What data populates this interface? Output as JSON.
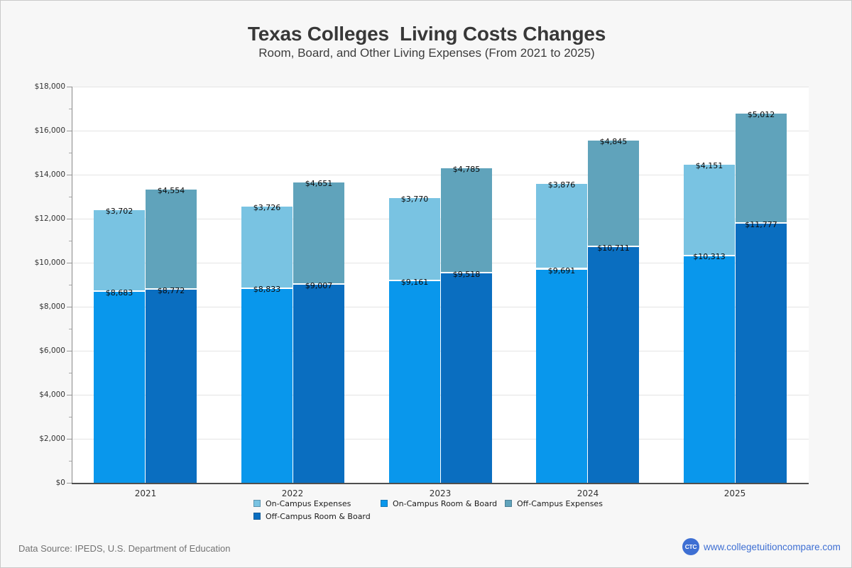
{
  "header": {
    "title": "Texas Colleges  Living Costs Changes",
    "subtitle": "Room, Board, and Other Living Expenses (From 2021 to 2025)"
  },
  "chart_data": {
    "type": "bar",
    "stacked": true,
    "title": "Texas Colleges  Living Costs Changes",
    "subtitle": "Room, Board, and Other Living Expenses (From 2021 to 2025)",
    "categories": [
      "2021",
      "2022",
      "2023",
      "2024",
      "2025"
    ],
    "groups": [
      {
        "name": "On-Campus",
        "segments": [
          {
            "name": "On-Campus Room & Board",
            "color": "#0997ec",
            "values": [
              8683,
              8833,
              9161,
              9691,
              10313
            ]
          },
          {
            "name": "On-Campus Expenses",
            "color": "#79c3e2",
            "values": [
              3702,
              3726,
              3770,
              3876,
              4151
            ]
          }
        ]
      },
      {
        "name": "Off-Campus",
        "segments": [
          {
            "name": "Off-Campus Room & Board",
            "color": "#0a6ec0",
            "values": [
              8772,
              9007,
              9518,
              10711,
              11777
            ]
          },
          {
            "name": "Off-Campus Expenses",
            "color": "#60a3bb",
            "values": [
              4554,
              4651,
              4785,
              4845,
              5012
            ]
          }
        ]
      }
    ],
    "ylim": [
      0,
      18000
    ],
    "ytick_interval": 2000,
    "yminor_interval": 1000,
    "value_prefix": "$",
    "grid": true,
    "legend_position": "bottom",
    "legend": [
      {
        "label": "On-Campus Expenses",
        "color": "#79c3e2"
      },
      {
        "label": "On-Campus Room & Board",
        "color": "#0997ec"
      },
      {
        "label": "Off-Campus Expenses",
        "color": "#60a3bb"
      },
      {
        "label": "Off-Campus Room & Board",
        "color": "#0a6ec0"
      }
    ]
  },
  "footer": {
    "data_source": "Data Source: IPEDS, U.S. Department of Education",
    "logo_text": "CTC",
    "website": "www.collegetuitioncompare.com"
  }
}
